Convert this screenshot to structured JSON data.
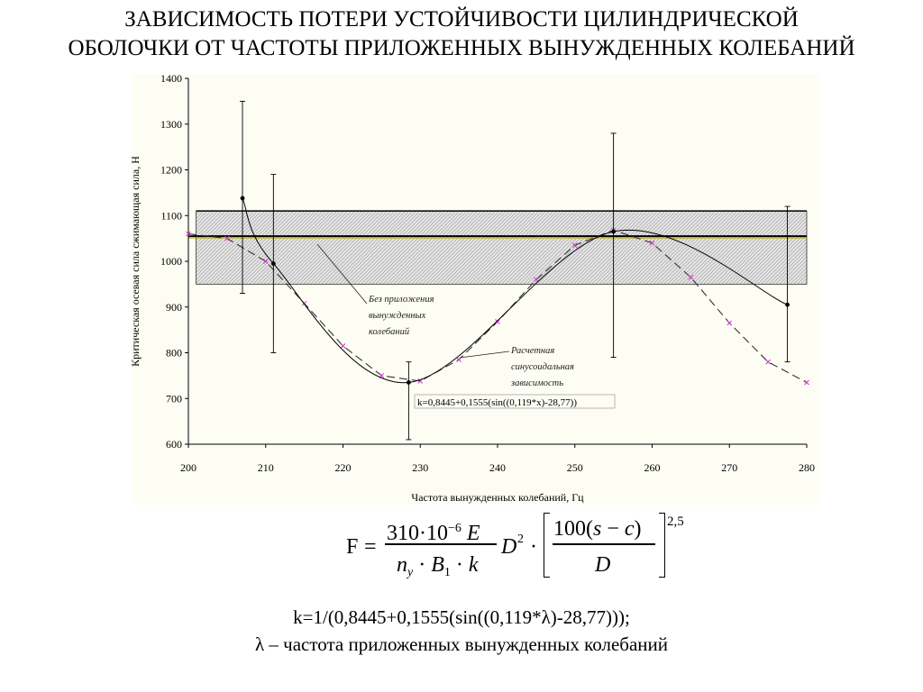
{
  "title": {
    "line1": "ЗАВИСИМОСТЬ ПОТЕРИ УСТОЙЧИВОСТИ ЦИЛИНДРИЧЕСКОЙ",
    "line2": "ОБОЛОЧКИ ОТ ЧАСТОТЫ ПРИЛОЖЕННЫХ ВЫНУЖДЕННЫХ КОЛЕБАНИЙ"
  },
  "chart_data": {
    "type": "line",
    "xlabel": "Частота вынужденных колебаний, Гц",
    "ylabel": "Критическая осевая сила сжимающая сила, Н",
    "xlim": [
      200,
      280
    ],
    "ylim": [
      600,
      1400
    ],
    "x_ticks": [
      200,
      210,
      220,
      230,
      240,
      250,
      260,
      270,
      280
    ],
    "y_ticks": [
      600,
      700,
      800,
      900,
      1000,
      1100,
      1200,
      1300,
      1400
    ],
    "grid": false,
    "band": {
      "x_from": 201,
      "x_to": 280,
      "y_from": 950,
      "y_to": 1110
    },
    "baseline": {
      "y": 1055,
      "x_from": 200,
      "x_to": 280
    },
    "series": [
      {
        "role": "experimental",
        "color": "#000000",
        "points": [
          {
            "x": 207,
            "y": 1138,
            "err_low": 930,
            "err_high": 1350
          },
          {
            "x": 211,
            "y": 995,
            "err_low": 800,
            "err_high": 1190
          },
          {
            "x": 228.5,
            "y": 735,
            "err_low": 610,
            "err_high": 780
          },
          {
            "x": 255,
            "y": 1065,
            "err_low": 790,
            "err_high": 1280
          },
          {
            "x": 277.5,
            "y": 905,
            "err_low": 780,
            "err_high": 1120
          }
        ]
      },
      {
        "role": "calculated",
        "color": "#cc33cc",
        "points": [
          {
            "x": 200,
            "y": 1060
          },
          {
            "x": 205,
            "y": 1050
          },
          {
            "x": 210,
            "y": 1000
          },
          {
            "x": 215,
            "y": 908
          },
          {
            "x": 220,
            "y": 815
          },
          {
            "x": 225,
            "y": 750
          },
          {
            "x": 230,
            "y": 738
          },
          {
            "x": 235,
            "y": 785
          },
          {
            "x": 240,
            "y": 868
          },
          {
            "x": 245,
            "y": 960
          },
          {
            "x": 250,
            "y": 1035
          },
          {
            "x": 255,
            "y": 1068
          },
          {
            "x": 260,
            "y": 1040
          },
          {
            "x": 265,
            "y": 965
          },
          {
            "x": 270,
            "y": 865
          },
          {
            "x": 275,
            "y": 780
          },
          {
            "x": 280,
            "y": 735
          }
        ]
      }
    ],
    "annotations": [
      {
        "lines": [
          "Без приложения",
          "вынужденных",
          "колебаний"
        ]
      },
      {
        "lines": [
          "Расчетная",
          "синусоидальная",
          "зависимость"
        ]
      }
    ],
    "formula_label": "k=0,8445+0,1555(sin((0,119*x)-28,77))"
  },
  "formula": {
    "lhs": "F",
    "eq": "=",
    "num": "310·10",
    "num_exp": "−6",
    "num_var": "E",
    "den_n": "n",
    "den_n_sub": "y",
    "den_b": "B",
    "den_b_sub": "1",
    "den_k": "k",
    "dot1": "·",
    "dot2": "·",
    "mid_d": "D",
    "mid_exp": "2",
    "mid_dot": "·",
    "br_num_a": "100(",
    "br_num_s": "s",
    "br_num_minus": " − ",
    "br_num_c": "c",
    "br_num_b": ")",
    "br_den": "D",
    "power": "2,5"
  },
  "notes": {
    "line1": "k=1/(0,8445+0,1555(sin((0,119*λ)-28,77)));",
    "line2": "λ – частота приложенных вынужденных колебаний"
  }
}
